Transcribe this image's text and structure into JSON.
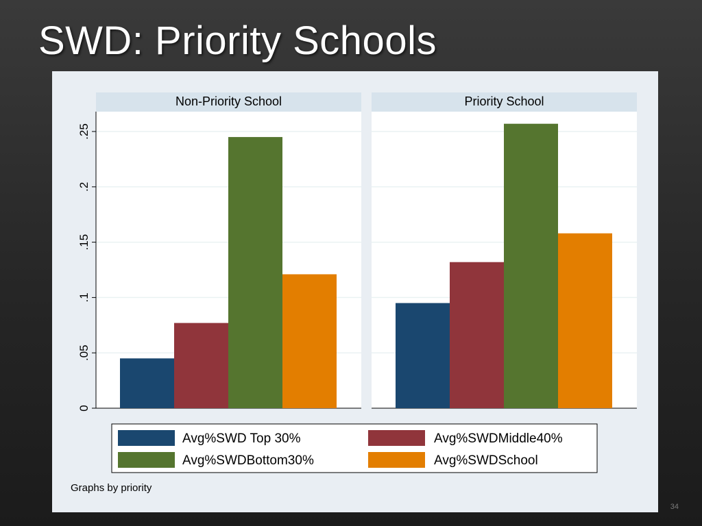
{
  "slide": {
    "title": "SWD:  Priority Schools",
    "page_number": "34"
  },
  "chart_data": {
    "type": "bar",
    "panels": [
      "Non-Priority School",
      "Priority School"
    ],
    "series": [
      {
        "name": "Avg%SWD Top 30%",
        "color": "#1a476f",
        "values": [
          0.045,
          0.095
        ]
      },
      {
        "name": "Avg%SWDMiddle40%",
        "color": "#90353b",
        "values": [
          0.077,
          0.132
        ]
      },
      {
        "name": "Avg%SWDBottom30%",
        "color": "#55752f",
        "values": [
          0.245,
          0.257
        ]
      },
      {
        "name": "Avg%SWDSchool",
        "color": "#e37e00",
        "values": [
          0.121,
          0.158
        ]
      }
    ],
    "ylim": [
      0,
      0.27
    ],
    "yticks": [
      0,
      0.05,
      0.1,
      0.15,
      0.2,
      0.25
    ],
    "ytick_labels": [
      "0",
      ".05",
      ".1",
      ".15",
      ".2",
      ".25"
    ],
    "grid": true,
    "legend_position": "bottom",
    "note": "Graphs by priority"
  }
}
